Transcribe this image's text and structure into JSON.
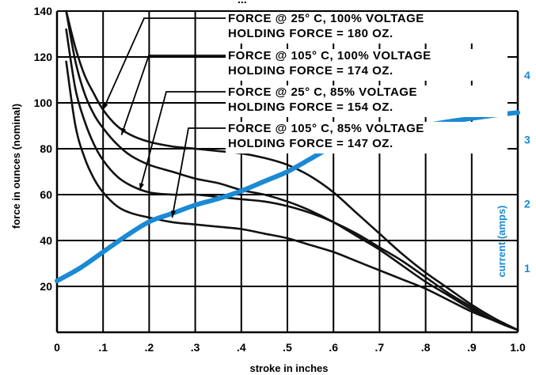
{
  "chart_data": {
    "type": "line",
    "title_fragment": "...",
    "xlabel": "stroke in inches",
    "ylabel": "force in ounces (nominal)",
    "y2label": "current (amps)",
    "xlim": [
      0,
      1.0
    ],
    "ylim": [
      0,
      140
    ],
    "y2lim": [
      0,
      5
    ],
    "x_ticks": [
      "0",
      ".1",
      ".2",
      ".3",
      ".4",
      ".5",
      ".6",
      ".7",
      ".8",
      ".9",
      "1.0"
    ],
    "x_tick_values": [
      0,
      0.1,
      0.2,
      0.3,
      0.4,
      0.5,
      0.6,
      0.7,
      0.8,
      0.9,
      1.0
    ],
    "y_ticks": [
      "20",
      "40",
      "60",
      "80",
      "100",
      "120",
      "140"
    ],
    "y_tick_values": [
      20,
      40,
      60,
      80,
      100,
      120,
      140
    ],
    "y2_ticks": [
      "1",
      "2",
      "3",
      "4"
    ],
    "y2_tick_values": [
      1,
      2,
      3,
      4
    ],
    "grid": true,
    "series": [
      {
        "name": "FORCE @ 25° C, 100% VOLTAGE",
        "note": "HOLDING FORCE = 180 OZ.",
        "axis": "left",
        "color": "#111111",
        "x": [
          0.02,
          0.04,
          0.06,
          0.08,
          0.1,
          0.13,
          0.16,
          0.2,
          0.25,
          0.3,
          0.35,
          0.4,
          0.45,
          0.5,
          0.55,
          0.6,
          0.65,
          0.7,
          0.75,
          0.8,
          0.85,
          0.9,
          0.95,
          1.0
        ],
        "y": [
          140,
          124,
          112,
          104,
          97,
          90,
          86,
          83,
          81,
          80,
          79,
          78,
          76,
          73,
          68,
          61,
          52,
          43,
          34,
          26,
          19,
          12,
          6,
          1
        ]
      },
      {
        "name": "FORCE @ 105° C, 100% VOLTAGE",
        "note": "HOLDING FORCE = 174 OZ.",
        "axis": "left",
        "color": "#111111",
        "x": [
          0.02,
          0.04,
          0.06,
          0.08,
          0.1,
          0.13,
          0.16,
          0.2,
          0.25,
          0.3,
          0.35,
          0.4,
          0.45,
          0.5,
          0.55,
          0.6,
          0.65,
          0.7,
          0.75,
          0.8,
          0.85,
          0.9,
          0.95,
          1.0
        ],
        "y": [
          140,
          118,
          104,
          95,
          89,
          82,
          77,
          73,
          70,
          67,
          65,
          62,
          60,
          57,
          53,
          48,
          42,
          36,
          29,
          22,
          16,
          10,
          5,
          1
        ]
      },
      {
        "name": "FORCE @ 25° C, 85% VOLTAGE",
        "note": "HOLDING FORCE = 154 OZ.",
        "axis": "left",
        "color": "#111111",
        "x": [
          0.02,
          0.04,
          0.06,
          0.08,
          0.1,
          0.13,
          0.16,
          0.2,
          0.25,
          0.3,
          0.35,
          0.4,
          0.45,
          0.5,
          0.55,
          0.6,
          0.65,
          0.7,
          0.75,
          0.8,
          0.85,
          0.9,
          0.95,
          1.0
        ],
        "y": [
          132,
          106,
          92,
          82,
          75,
          68,
          64,
          61,
          60,
          60,
          59,
          58,
          57,
          55,
          52,
          48,
          43,
          37,
          31,
          24,
          17,
          11,
          5,
          1
        ]
      },
      {
        "name": "FORCE @ 105° C, 85% VOLTAGE",
        "note": "HOLDING FORCE = 147 OZ.",
        "axis": "left",
        "color": "#111111",
        "x": [
          0.02,
          0.04,
          0.06,
          0.08,
          0.1,
          0.13,
          0.16,
          0.2,
          0.25,
          0.3,
          0.35,
          0.4,
          0.45,
          0.5,
          0.55,
          0.6,
          0.65,
          0.7,
          0.75,
          0.8,
          0.85,
          0.9,
          0.95,
          1.0
        ],
        "y": [
          118,
          90,
          76,
          67,
          61,
          55,
          52,
          50,
          48,
          47,
          46,
          45,
          43,
          41,
          38,
          35,
          31,
          27,
          23,
          19,
          14,
          9,
          5,
          1
        ]
      },
      {
        "name": "current (amps)",
        "axis": "right",
        "color": "#1a8ad4",
        "x": [
          0.0,
          0.05,
          0.1,
          0.15,
          0.2,
          0.25,
          0.3,
          0.35,
          0.4,
          0.45,
          0.5,
          0.55,
          0.6,
          0.65,
          0.7,
          0.75,
          0.8,
          0.85,
          0.9,
          0.95,
          1.0
        ],
        "y": [
          0.8,
          1.0,
          1.25,
          1.5,
          1.72,
          1.85,
          1.98,
          2.08,
          2.2,
          2.35,
          2.5,
          2.7,
          2.9,
          3.02,
          3.1,
          3.17,
          3.22,
          3.28,
          3.33,
          3.38,
          3.42
        ]
      }
    ]
  }
}
